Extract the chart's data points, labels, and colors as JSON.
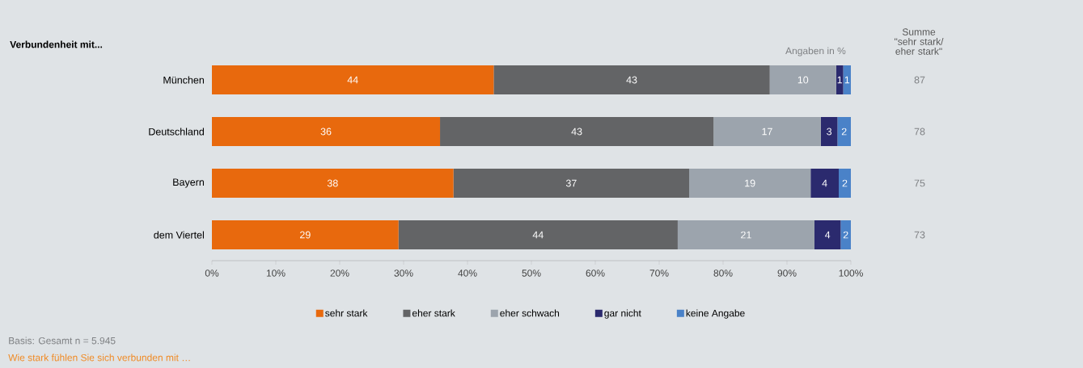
{
  "chart_data": {
    "type": "bar",
    "orientation": "horizontal",
    "stacked": true,
    "ylabel": "Verbundenheit mit...",
    "categories": [
      "München",
      "Deutschland",
      "Bayern",
      "dem Viertel"
    ],
    "series": [
      {
        "name": "sehr stark",
        "color": "#e8690d",
        "values": [
          44.1,
          35.7,
          37.8,
          29.2
        ],
        "value_labels": [
          "44",
          "36",
          "38",
          "29"
        ]
      },
      {
        "name": "eher stark",
        "color": "#636466",
        "values": [
          43.2,
          42.8,
          36.9,
          43.7
        ],
        "value_labels": [
          "43",
          "43",
          "37",
          "44"
        ]
      },
      {
        "name": "eher schwach",
        "color": "#9ca4ad",
        "values": [
          10.4,
          16.8,
          19.0,
          21.4
        ],
        "value_labels": [
          "10",
          "17",
          "19",
          "21"
        ]
      },
      {
        "name": "gar nicht",
        "color": "#2b2a6e",
        "values": [
          1.1,
          2.6,
          4.4,
          4.1
        ],
        "value_labels": [
          "1",
          "3",
          "4",
          "4"
        ]
      },
      {
        "name": "keine Angabe",
        "color": "#4a82c8",
        "values": [
          1.2,
          2.1,
          1.9,
          1.6
        ],
        "value_labels": [
          "1",
          "2",
          "2",
          "2"
        ]
      }
    ],
    "xlim": [
      0,
      100
    ],
    "xticks": [
      {
        "value": 0,
        "label": "0%"
      },
      {
        "value": 10,
        "label": "10%"
      },
      {
        "value": 20,
        "label": "20%"
      },
      {
        "value": 30,
        "label": "30%"
      },
      {
        "value": 40,
        "label": "40%"
      },
      {
        "value": 50,
        "label": "50%"
      },
      {
        "value": 60,
        "label": "60%"
      },
      {
        "value": 70,
        "label": "70%"
      },
      {
        "value": 80,
        "label": "80%"
      },
      {
        "value": 90,
        "label": "90%"
      },
      {
        "value": 100,
        "label": "100%"
      }
    ],
    "legend": "bottom",
    "annotations": [
      "Angaben in %",
      "Summe \"sehr stark/ eher stark\"",
      "87",
      "78",
      "75",
      "73",
      "Basis: Gesamt n = 5.945",
      "Wie stark fühlen Sie sich verbunden mit …"
    ]
  }
}
